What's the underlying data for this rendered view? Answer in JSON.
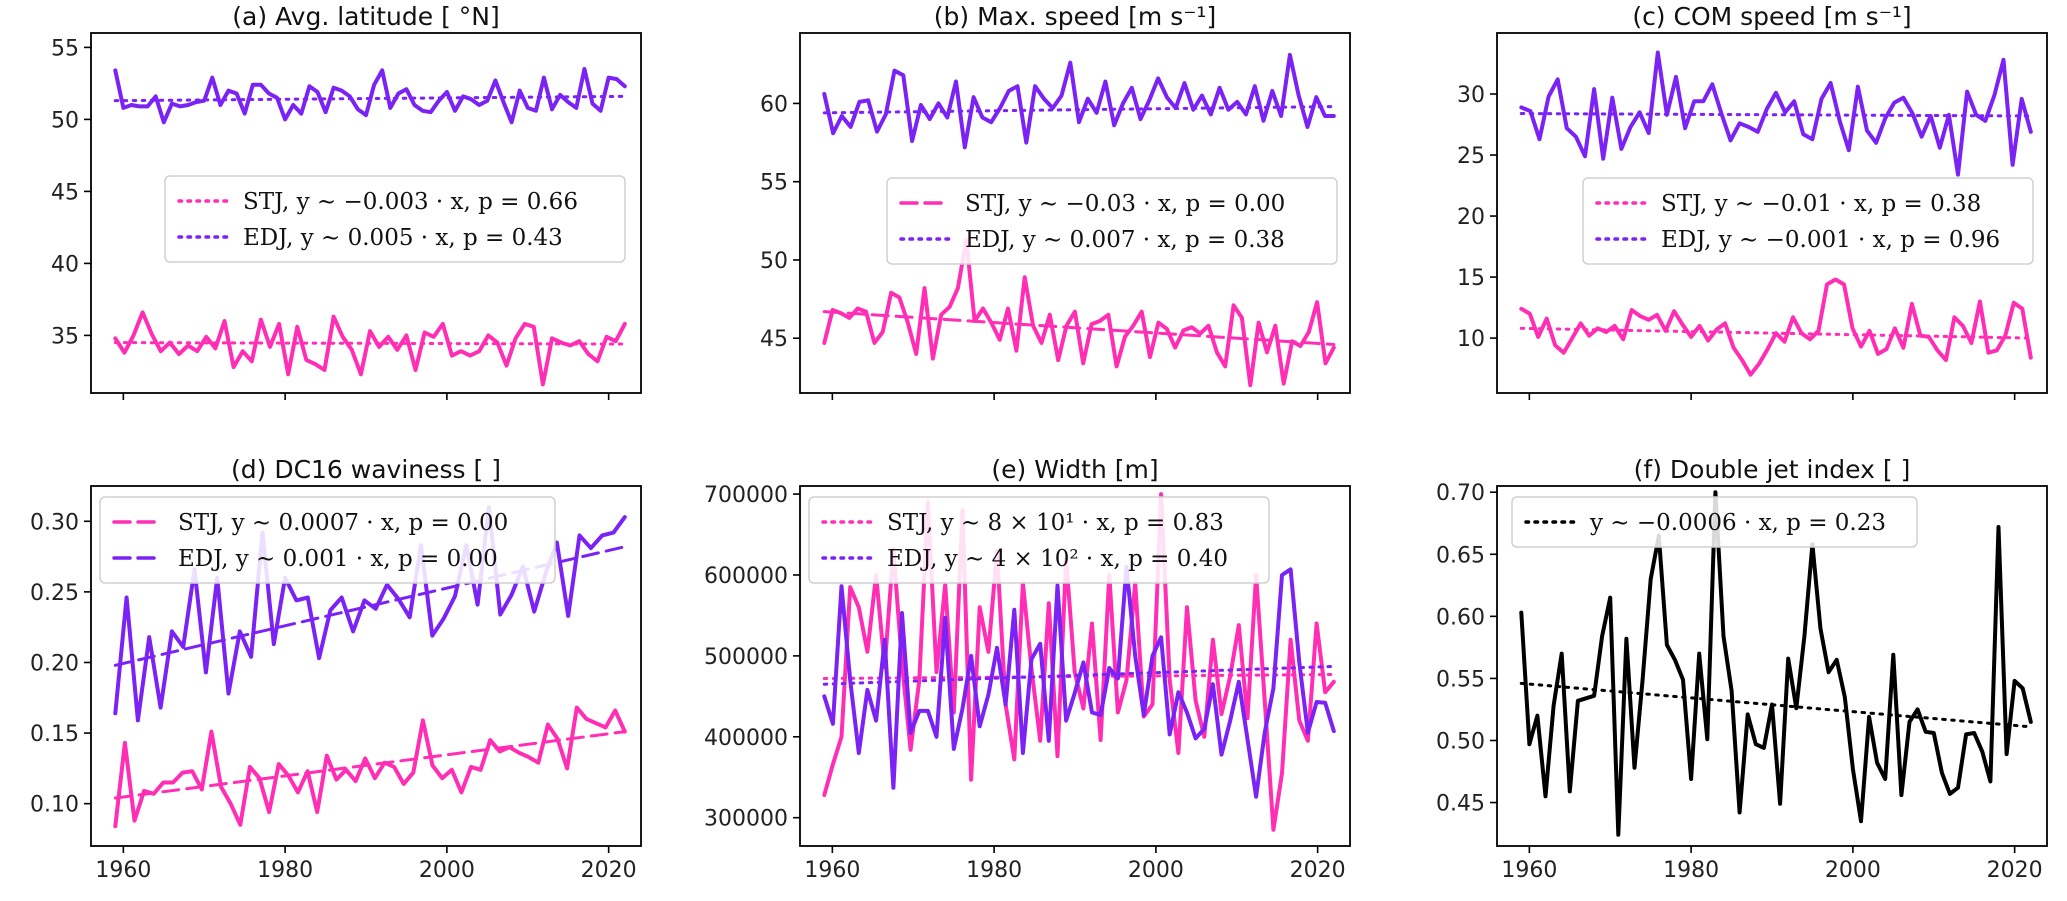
{
  "colors": {
    "stj": "#ff2eb4",
    "edj": "#7b22f5",
    "black": "#000000"
  },
  "x_ticks": [
    1960,
    1980,
    2000,
    2020
  ],
  "chart_data": [
    {
      "type": "line",
      "title": "(a) Avg. latitude [ °N]",
      "xlim": [
        1956,
        2024
      ],
      "ylim": [
        31,
        56
      ],
      "yticks": [
        35,
        40,
        45,
        50,
        55
      ],
      "legend": "center-right",
      "series": [
        {
          "name": "STJ",
          "color": "stj",
          "trend_style": "dotted",
          "trend": [
            34.5,
            34.4
          ],
          "label": "STJ, y ∼ −0.003 · x, p = 0.66",
          "values": [
            34.8,
            33.8,
            35.0,
            36.6,
            35.1,
            33.9,
            34.5,
            33.7,
            34.3,
            33.9,
            34.9,
            34.1,
            36.0,
            32.8,
            33.9,
            33.2,
            36.1,
            34.2,
            35.8,
            32.3,
            35.6,
            33.3,
            33.0,
            32.6,
            36.3,
            34.9,
            34.0,
            32.3,
            35.3,
            34.2,
            34.9,
            34.0,
            35.0,
            32.6,
            35.2,
            34.9,
            35.8,
            33.6,
            33.9,
            33.6,
            33.9,
            35.0,
            34.5,
            32.9,
            34.8,
            35.8,
            35.6,
            31.6,
            34.8,
            34.5,
            34.3,
            34.6,
            33.7,
            33.2,
            34.9,
            34.6,
            35.8
          ]
        },
        {
          "name": "EDJ",
          "color": "edj",
          "trend_style": "dotted",
          "trend": [
            51.3,
            51.6
          ],
          "label": "EDJ, y ∼ 0.005 · x, p = 0.43",
          "values": [
            53.4,
            50.8,
            51.0,
            50.9,
            50.9,
            51.6,
            49.8,
            51.1,
            50.9,
            51.0,
            51.2,
            51.3,
            52.9,
            51.0,
            52.0,
            51.8,
            50.4,
            52.4,
            52.4,
            51.8,
            51.5,
            50.0,
            51.0,
            50.4,
            52.3,
            51.9,
            50.5,
            52.2,
            52.0,
            51.6,
            50.7,
            50.3,
            52.4,
            53.4,
            50.8,
            51.8,
            52.1,
            51.0,
            50.6,
            50.5,
            51.3,
            51.9,
            50.6,
            51.6,
            51.4,
            51.0,
            51.3,
            52.7,
            51.2,
            49.8,
            52.0,
            50.8,
            50.6,
            52.9,
            50.7,
            51.7,
            51.2,
            50.8,
            53.5,
            51.1,
            50.6,
            52.9,
            52.8,
            52.3
          ]
        }
      ]
    },
    {
      "type": "line",
      "title": "(b) Max. speed [m s⁻¹]",
      "xlim": [
        1956,
        2024
      ],
      "ylim": [
        41.5,
        64.5
      ],
      "yticks": [
        45,
        50,
        55,
        60
      ],
      "legend": "center-right",
      "series": [
        {
          "name": "STJ",
          "color": "stj",
          "trend_style": "dashed",
          "trend": [
            46.7,
            44.6
          ],
          "label": "STJ, y ∼ −0.03 · x, p = 0.00",
          "values": [
            44.7,
            46.8,
            46.6,
            46.3,
            46.9,
            46.7,
            44.7,
            45.4,
            47.9,
            47.6,
            46.0,
            44.0,
            48.2,
            43.7,
            46.5,
            47.0,
            48.2,
            51.3,
            46.1,
            46.9,
            46.0,
            44.9,
            46.9,
            44.2,
            48.9,
            45.8,
            44.7,
            46.5,
            43.6,
            45.8,
            46.7,
            43.4,
            45.9,
            46.1,
            46.5,
            43.2,
            45.1,
            45.8,
            46.7,
            43.8,
            46.0,
            45.6,
            44.4,
            45.5,
            45.7,
            45.3,
            45.8,
            44.1,
            43.2,
            47.1,
            46.3,
            42.0,
            46.0,
            44.1,
            45.8,
            42.1,
            44.8,
            44.5,
            45.4,
            47.3,
            43.4,
            44.4
          ]
        },
        {
          "name": "EDJ",
          "color": "edj",
          "trend_style": "dotted",
          "trend": [
            59.4,
            59.8
          ],
          "label": "EDJ, y ∼ 0.007 · x, p = 0.38",
          "values": [
            60.6,
            58.1,
            59.2,
            58.5,
            60.1,
            60.2,
            58.2,
            59.3,
            62.1,
            61.8,
            57.6,
            59.9,
            59.0,
            60.0,
            59.1,
            61.4,
            57.2,
            60.4,
            59.1,
            58.8,
            59.7,
            60.8,
            61.1,
            57.5,
            61.1,
            60.3,
            59.7,
            60.5,
            62.6,
            58.8,
            60.3,
            59.4,
            61.4,
            58.6,
            60.0,
            61.0,
            59.0,
            60.2,
            61.6,
            60.4,
            59.7,
            61.3,
            59.6,
            60.5,
            59.3,
            61.0,
            59.6,
            60.1,
            59.3,
            61.1,
            58.9,
            60.8,
            59.2,
            63.1,
            60.5,
            58.5,
            60.4,
            59.2,
            59.2
          ]
        }
      ]
    },
    {
      "type": "line",
      "title": "(c) COM speed [m s⁻¹]",
      "xlim": [
        1956,
        2024
      ],
      "ylim": [
        5.5,
        35.0
      ],
      "yticks": [
        10,
        15,
        20,
        25,
        30
      ],
      "legend": "center-right",
      "series": [
        {
          "name": "STJ",
          "color": "stj",
          "trend_style": "dotted",
          "trend": [
            10.8,
            10.0
          ],
          "label": "STJ, y ∼ −0.01 · x, p = 0.38",
          "values": [
            12.4,
            12.0,
            10.1,
            11.6,
            9.4,
            8.8,
            10.0,
            11.2,
            10.2,
            10.8,
            10.5,
            11.0,
            9.9,
            12.3,
            11.8,
            11.5,
            11.9,
            10.6,
            12.2,
            11.1,
            10.1,
            11.0,
            9.8,
            10.7,
            11.2,
            9.2,
            8.2,
            7.0,
            7.9,
            9.1,
            10.4,
            9.7,
            11.7,
            10.4,
            9.9,
            10.6,
            14.4,
            14.8,
            14.4,
            10.8,
            9.3,
            10.6,
            8.7,
            9.1,
            10.8,
            9.2,
            12.8,
            10.2,
            10.1,
            9.0,
            8.2,
            11.7,
            11.0,
            9.6,
            13.0,
            8.8,
            9.0,
            10.2,
            12.9,
            12.4,
            8.4
          ]
        },
        {
          "name": "EDJ",
          "color": "edj",
          "trend_style": "dotted",
          "trend": [
            28.4,
            28.2
          ],
          "label": "EDJ, y ∼ −0.001 · x, p = 0.96",
          "values": [
            28.9,
            28.6,
            26.3,
            29.8,
            31.2,
            27.2,
            26.5,
            24.9,
            30.4,
            24.7,
            29.7,
            25.5,
            27.3,
            28.5,
            26.8,
            33.4,
            28.3,
            31.4,
            27.2,
            29.4,
            29.4,
            30.8,
            28.4,
            26.2,
            27.6,
            27.3,
            26.9,
            28.8,
            30.1,
            28.5,
            29.4,
            26.7,
            26.3,
            29.6,
            30.9,
            27.8,
            25.4,
            30.6,
            27.0,
            26.0,
            28.0,
            29.3,
            29.7,
            28.4,
            26.5,
            28.2,
            25.6,
            28.3,
            23.4,
            30.2,
            28.3,
            27.8,
            29.9,
            32.8,
            24.2,
            29.6,
            26.9
          ]
        }
      ]
    },
    {
      "type": "line",
      "title": "(d) DC16 waviness [ ]",
      "xlim": [
        1956,
        2024
      ],
      "ylim": [
        0.07,
        0.325
      ],
      "yticks": [
        0.1,
        0.15,
        0.2,
        0.25,
        0.3
      ],
      "ytick_labels": [
        "0.10",
        "0.15",
        "0.20",
        "0.25",
        "0.30"
      ],
      "legend": "top-left",
      "series": [
        {
          "name": "STJ",
          "color": "stj",
          "trend_style": "dashed",
          "trend": [
            0.104,
            0.151
          ],
          "label": "STJ, y ∼ 0.0007 · x, p = 0.00",
          "values": [
            0.084,
            0.143,
            0.088,
            0.109,
            0.107,
            0.115,
            0.115,
            0.122,
            0.123,
            0.11,
            0.151,
            0.112,
            0.1,
            0.085,
            0.126,
            0.118,
            0.094,
            0.128,
            0.12,
            0.108,
            0.123,
            0.094,
            0.134,
            0.117,
            0.124,
            0.116,
            0.132,
            0.118,
            0.129,
            0.126,
            0.114,
            0.122,
            0.159,
            0.127,
            0.118,
            0.124,
            0.108,
            0.126,
            0.124,
            0.145,
            0.137,
            0.14,
            0.136,
            0.133,
            0.129,
            0.156,
            0.146,
            0.125,
            0.168,
            0.16,
            0.157,
            0.154,
            0.166,
            0.151
          ]
        },
        {
          "name": "EDJ",
          "color": "edj",
          "trend_style": "dashed",
          "trend": [
            0.198,
            0.282
          ],
          "label": "EDJ, y ∼ 0.001 · x, p = 0.00",
          "values": [
            0.164,
            0.246,
            0.159,
            0.218,
            0.168,
            0.222,
            0.211,
            0.266,
            0.193,
            0.26,
            0.178,
            0.222,
            0.204,
            0.292,
            0.213,
            0.26,
            0.244,
            0.246,
            0.203,
            0.237,
            0.246,
            0.222,
            0.244,
            0.238,
            0.255,
            0.245,
            0.232,
            0.283,
            0.219,
            0.231,
            0.247,
            0.283,
            0.241,
            0.31,
            0.234,
            0.248,
            0.268,
            0.236,
            0.263,
            0.285,
            0.233,
            0.29,
            0.281,
            0.29,
            0.292,
            0.303
          ]
        }
      ]
    },
    {
      "type": "line",
      "title": "(e) Width [m]",
      "xlim": [
        1956,
        2024
      ],
      "ylim": [
        265000,
        710000
      ],
      "yticks": [
        300000,
        400000,
        500000,
        600000,
        700000
      ],
      "legend": "top-left",
      "series": [
        {
          "name": "STJ",
          "color": "stj",
          "trend_style": "dotted",
          "trend": [
            472000,
            477000
          ],
          "label": "STJ, y ∼ 8 × 10¹ · x, p = 0.83",
          "values": [
            328000,
            366000,
            400000,
            585000,
            560000,
            505000,
            600000,
            486000,
            632000,
            490000,
            384000,
            470000,
            690000,
            480000,
            588000,
            430000,
            680000,
            347000,
            560000,
            505000,
            630000,
            440000,
            372000,
            590000,
            484000,
            395000,
            565000,
            376000,
            620000,
            480000,
            435000,
            540000,
            396000,
            600000,
            430000,
            470000,
            590000,
            425000,
            440000,
            700000,
            470000,
            380000,
            560000,
            445000,
            400000,
            520000,
            428000,
            475000,
            538000,
            423000,
            600000,
            445000,
            285000,
            355000,
            520000,
            420000,
            395000,
            540000,
            455000,
            468000
          ]
        },
        {
          "name": "EDJ",
          "color": "edj",
          "trend_style": "dotted",
          "trend": [
            465000,
            487000
          ],
          "label": "EDJ, y ∼ 4 × 10² · x, p = 0.40",
          "values": [
            450000,
            416000,
            586000,
            470000,
            380000,
            458000,
            420000,
            520000,
            337000,
            553000,
            405000,
            432000,
            432000,
            400000,
            547000,
            385000,
            435000,
            500000,
            413000,
            452000,
            510000,
            440000,
            557000,
            380000,
            496000,
            515000,
            395000,
            587000,
            420000,
            454000,
            492000,
            430000,
            427000,
            485000,
            472000,
            610000,
            500000,
            427000,
            500000,
            523000,
            403000,
            455000,
            430000,
            398000,
            410000,
            465000,
            378000,
            420000,
            468000,
            397000,
            326000,
            405000,
            460000,
            600000,
            607000,
            492000,
            405000,
            443000,
            442000,
            407000
          ]
        }
      ]
    },
    {
      "type": "line",
      "title": "(f) Double jet index [ ]",
      "xlim": [
        1956,
        2024
      ],
      "ylim": [
        0.415,
        0.705
      ],
      "yticks": [
        0.45,
        0.5,
        0.55,
        0.6,
        0.65,
        0.7
      ],
      "ytick_labels": [
        "0.45",
        "0.50",
        "0.55",
        "0.60",
        "0.65",
        "0.70"
      ],
      "legend": "top-left",
      "series": [
        {
          "name": "",
          "color": "black",
          "trend_style": "dotted",
          "trend": [
            0.546,
            0.511
          ],
          "label": "y ∼ −0.0006 · x, p = 0.23",
          "values": [
            0.603,
            0.497,
            0.52,
            0.455,
            0.528,
            0.57,
            0.459,
            0.532,
            0.534,
            0.536,
            0.584,
            0.615,
            0.424,
            0.582,
            0.478,
            0.549,
            0.63,
            0.665,
            0.577,
            0.565,
            0.549,
            0.469,
            0.57,
            0.501,
            0.7,
            0.584,
            0.54,
            0.442,
            0.521,
            0.497,
            0.494,
            0.529,
            0.449,
            0.566,
            0.526,
            0.584,
            0.658,
            0.59,
            0.555,
            0.565,
            0.535,
            0.477,
            0.435,
            0.519,
            0.482,
            0.469,
            0.569,
            0.456,
            0.515,
            0.525,
            0.507,
            0.506,
            0.474,
            0.457,
            0.462,
            0.505,
            0.506,
            0.491,
            0.467,
            0.672,
            0.489,
            0.548,
            0.542,
            0.515
          ]
        }
      ]
    }
  ]
}
